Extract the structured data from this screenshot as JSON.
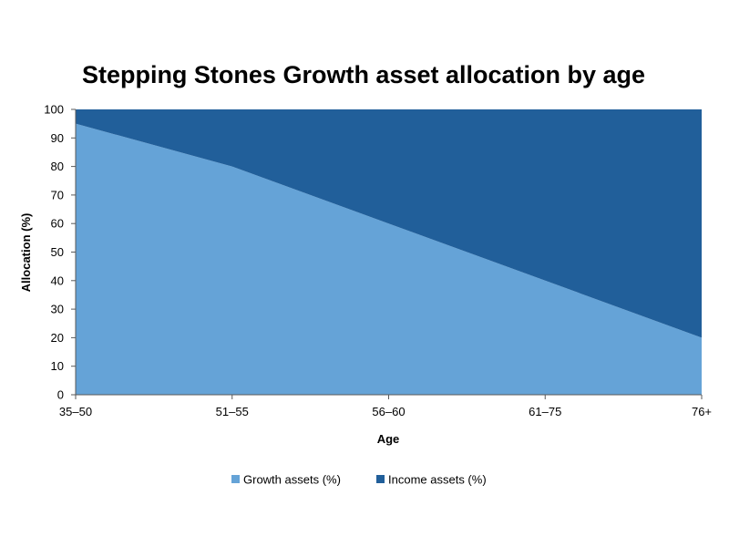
{
  "chart_data": {
    "type": "area",
    "stacked": true,
    "title": "Stepping Stones Growth asset allocation by age",
    "xlabel": "Age",
    "ylabel": "Allocation (%)",
    "categories": [
      "35–50",
      "51–55",
      "56–60",
      "61–75",
      "76+"
    ],
    "ylim": [
      0,
      100
    ],
    "yticks": [
      0,
      10,
      20,
      30,
      40,
      50,
      60,
      70,
      80,
      90,
      100
    ],
    "grid": false,
    "legend_position": "bottom",
    "series": [
      {
        "name": "Growth assets (%)",
        "values": [
          95,
          80,
          60,
          40,
          20
        ],
        "color": "#65a3d7"
      },
      {
        "name": "Income assets (%)",
        "values": [
          5,
          20,
          40,
          60,
          80
        ],
        "color": "#215f9a"
      }
    ]
  }
}
